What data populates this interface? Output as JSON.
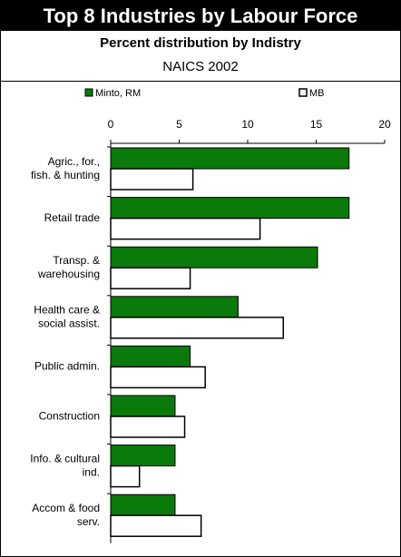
{
  "header": {
    "title": "Top 8 Industries by Labour Force",
    "subtitle": "Percent distribution by Indistry",
    "subtitle2": "NAICS 2002"
  },
  "colors": {
    "series_1": "#0a7a0a",
    "series_2": "#ffffff",
    "stroke": "#000000"
  },
  "chart_data": {
    "type": "bar",
    "orientation": "horizontal",
    "categories": [
      [
        "Agric., for.,",
        "fish. & hunting"
      ],
      [
        "Retail trade"
      ],
      [
        "Transp. &",
        "warehousing"
      ],
      [
        "Health care &",
        "social assist."
      ],
      [
        "Public admin."
      ],
      [
        "Construction"
      ],
      [
        "Info. & cultural",
        "ind."
      ],
      [
        "Accom & food",
        "serv."
      ]
    ],
    "series": [
      {
        "name": "Minto, RM",
        "values": [
          17.4,
          17.4,
          15.1,
          9.3,
          5.8,
          4.7,
          4.7,
          4.7
        ]
      },
      {
        "name": "MB",
        "values": [
          6.0,
          10.9,
          5.8,
          12.6,
          6.9,
          5.4,
          2.1,
          6.6
        ]
      }
    ],
    "xlim": [
      0,
      20
    ],
    "ticks": [
      0,
      5,
      10,
      15,
      20
    ],
    "legend_position": "top",
    "grid": false
  }
}
